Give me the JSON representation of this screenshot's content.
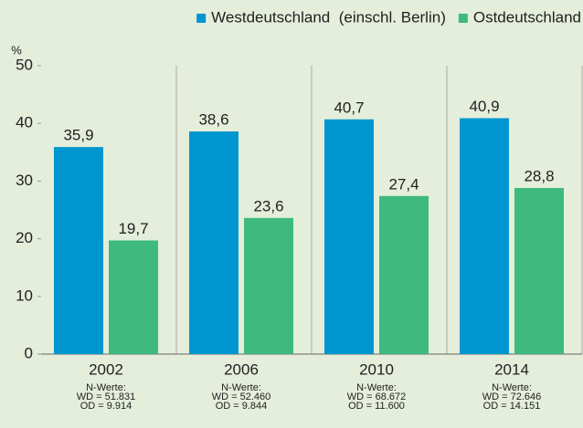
{
  "chart_data": {
    "type": "bar",
    "y_unit": "%",
    "categories": [
      "2002",
      "2006",
      "2010",
      "2014"
    ],
    "category_notes": [
      [
        "N-Werte:",
        "WD = 51.831",
        "OD = 9.914"
      ],
      [
        "N-Werte:",
        "WD = 52.460",
        "OD = 9.844"
      ],
      [
        "N-Werte:",
        "WD = 68.672",
        "OD = 11.600"
      ],
      [
        "N-Werte:",
        "WD = 72.646",
        "OD = 14.151"
      ]
    ],
    "series": [
      {
        "name": "Westdeutschland  (einschl. Berlin)",
        "color": "#0096cf",
        "values": [
          35.9,
          38.6,
          40.7,
          40.9
        ],
        "value_labels": [
          "35,9",
          "38,6",
          "40,7",
          "40,9"
        ]
      },
      {
        "name": "Ostdeutschland",
        "color": "#3dba7c",
        "values": [
          19.7,
          23.6,
          27.4,
          28.8
        ],
        "value_labels": [
          "19,7",
          "23,6",
          "27,4",
          "28,8"
        ]
      }
    ],
    "ylim": [
      0,
      50
    ],
    "yticks": [
      0,
      10,
      20,
      30,
      40,
      50
    ],
    "grid": false,
    "legend": "top-right"
  }
}
